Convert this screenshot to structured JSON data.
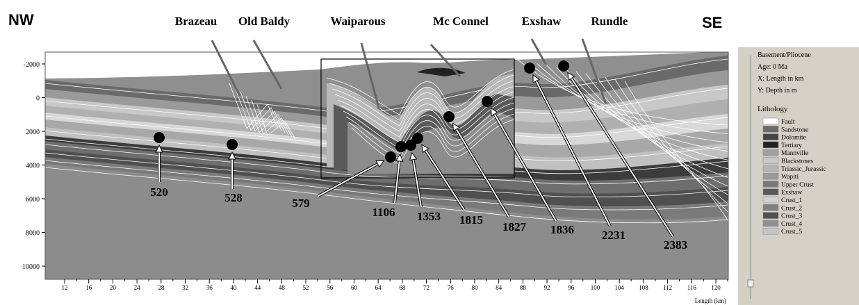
{
  "header": {
    "left": "NW",
    "right": "SE"
  },
  "formations": [
    {
      "label": "Brazeau"
    },
    {
      "label": "Old Baldy"
    },
    {
      "label": "Waiparous"
    },
    {
      "label": "Mc Connel"
    },
    {
      "label": "Exshaw"
    },
    {
      "label": "Rundle"
    }
  ],
  "wells": [
    {
      "label": "520"
    },
    {
      "label": "528"
    },
    {
      "label": "579"
    },
    {
      "label": "1106"
    },
    {
      "label": "1353"
    },
    {
      "label": "1815"
    },
    {
      "label": "1827"
    },
    {
      "label": "1836"
    },
    {
      "label": "2231"
    },
    {
      "label": "2383"
    }
  ],
  "axes": {
    "y_ticks": [
      "-2000",
      "0",
      "2000",
      "4000",
      "6000",
      "8000",
      "10000"
    ],
    "x_ticks": [
      "12",
      "16",
      "20",
      "24",
      "28",
      "32",
      "36",
      "40",
      "44",
      "48",
      "52",
      "56",
      "60",
      "64",
      "68",
      "72",
      "76",
      "80",
      "84",
      "88",
      "92",
      "96",
      "100",
      "104",
      "108",
      "112",
      "116",
      "120"
    ],
    "x_label": "Length (km)"
  },
  "legend": {
    "info": [
      "Basement/Pliocene",
      "Age: 0 Ma",
      "X: Length in km",
      "Y: Depth in m"
    ],
    "title": "Lithology",
    "items": [
      {
        "label": "Fault",
        "color": "#ffffff"
      },
      {
        "label": "Sandstone",
        "color": "#6a6a6a"
      },
      {
        "label": "Dolomite",
        "color": "#454545"
      },
      {
        "label": "Tertiary",
        "color": "#222222"
      },
      {
        "label": "Mannville",
        "color": "#a0a0a0"
      },
      {
        "label": "Blackstones",
        "color": "#c8c8c8"
      },
      {
        "label": "Triassic_Jurassic",
        "color": "#b4b4b4"
      },
      {
        "label": "Wapiti",
        "color": "#9a9a9a"
      },
      {
        "label": "Upper Crust",
        "color": "#7a7a7a"
      },
      {
        "label": "Exshaw",
        "color": "#5a5a5a"
      },
      {
        "label": "Crust_1",
        "color": "#d2d2d2"
      },
      {
        "label": "Crust_2",
        "color": "#808080"
      },
      {
        "label": "Crust_3",
        "color": "#505050"
      },
      {
        "label": "Crust_4",
        "color": "#909090"
      },
      {
        "label": "Crust_5",
        "color": "#c6c6c6"
      }
    ]
  }
}
